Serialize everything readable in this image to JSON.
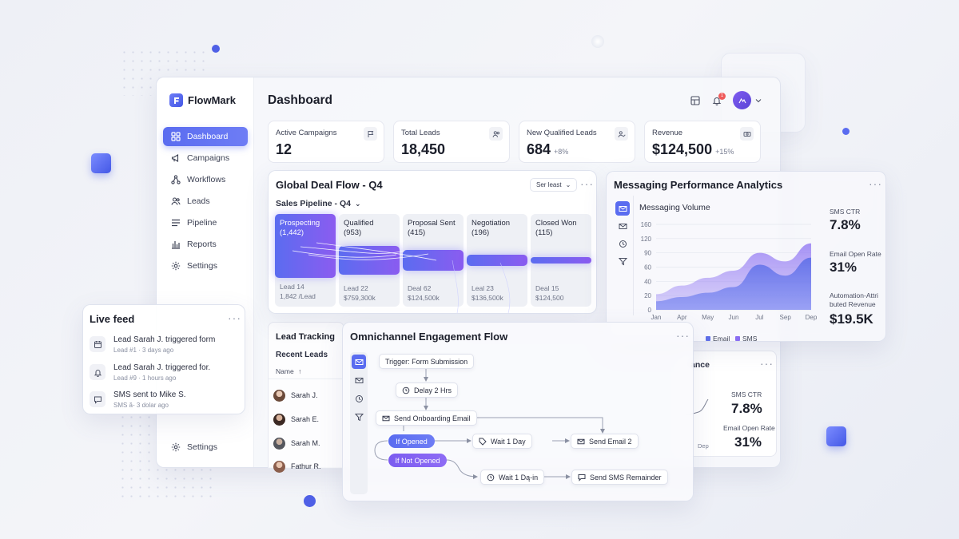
{
  "app": {
    "name": "FlowMark"
  },
  "sidebar": {
    "items": [
      {
        "label": "Dashboard",
        "icon": "grid-icon"
      },
      {
        "label": "Campaigns",
        "icon": "megaphone-icon"
      },
      {
        "label": "Workflows",
        "icon": "workflow-icon"
      },
      {
        "label": "Leads",
        "icon": "users-icon"
      },
      {
        "label": "Pipeline",
        "icon": "list-icon"
      },
      {
        "label": "Reports",
        "icon": "bar-chart-icon"
      },
      {
        "label": "Settings",
        "icon": "gear-icon"
      }
    ],
    "bottom_settings": "Settings"
  },
  "header": {
    "title": "Dashboard",
    "notification_count": "1"
  },
  "kpis": [
    {
      "label": "Active Campaigns",
      "value": "12",
      "delta": "",
      "icon": "flag-icon"
    },
    {
      "label": "Total Leads",
      "value": "18,450",
      "delta": "",
      "icon": "users-icon"
    },
    {
      "label": "New Qualified Leads",
      "value": "684",
      "delta": "+8%",
      "icon": "user-check-icon"
    },
    {
      "label": "Revenue",
      "value": "$124,500",
      "delta": "+15%",
      "icon": "cash-icon"
    }
  ],
  "deal_flow": {
    "title": "Global Deal Flow - Q4",
    "filter": "Ser least",
    "subtitle": "Sales Pipeline - Q4",
    "stages": [
      {
        "name": "Prospecting",
        "count": "(1,442)",
        "foot1": "Lead 14",
        "foot2": "1,842 /Lead",
        "fill": 0.7
      },
      {
        "name": "Qualified",
        "count": "(953)",
        "foot1": "Lead 22",
        "foot2": "$759,300k",
        "fill": 0.31
      },
      {
        "name": "Proposal Sent",
        "count": "(415)",
        "foot1": "Deal 62",
        "foot2": "$124,500k",
        "fill": 0.22
      },
      {
        "name": "Negotiation",
        "count": "(196)",
        "foot1": "Leal 23",
        "foot2": "$136,500k",
        "fill": 0.12
      },
      {
        "name": "Closed Won",
        "count": "(115)",
        "foot1": "Deal 15",
        "foot2": "$124,500",
        "fill": 0.07
      }
    ]
  },
  "messaging": {
    "title": "Messaging Performance Analytics",
    "chart_title": "Messaging Volume",
    "stats": [
      {
        "label": "SMS CTR",
        "value": "7.8%"
      },
      {
        "label": "Email Open Rate",
        "value": "31%"
      },
      {
        "label": "Automation-Attributed Revenue",
        "label_line1": "Automation-Attri",
        "label_line2": "buted Revenue",
        "value": "$19.5K"
      }
    ]
  },
  "chart_data": {
    "type": "area",
    "title": "Messaging Volume",
    "categories": [
      "Jan",
      "Apr",
      "May",
      "Jun",
      "Jul",
      "Sep",
      "Dep"
    ],
    "yticks": [
      0,
      20,
      40,
      60,
      90,
      120,
      160
    ],
    "ylim": [
      0,
      160
    ],
    "series": [
      {
        "name": "Email",
        "values": [
          12,
          18,
          24,
          32,
          65,
          48,
          80
        ]
      },
      {
        "name": "SMS",
        "values": [
          22,
          34,
          45,
          55,
          90,
          72,
          110
        ]
      }
    ],
    "legend": "bottom"
  },
  "live_feed": {
    "title": "Live feed",
    "items": [
      {
        "text": "Lead Sarah J. triggered form",
        "sub": "Lead #1 · 3 days ago",
        "icon": "calendar-icon"
      },
      {
        "text": "Lead Sarah J. triggered for.",
        "sub": "Lead #9 · 1 hours ago",
        "icon": "bell-icon"
      },
      {
        "text": "SMS sent to Mike S.",
        "sub": "SMS ă- 3 dolar ago",
        "icon": "chat-icon"
      }
    ]
  },
  "leads": {
    "title": "Lead Tracking",
    "subtitle": "Recent Leads",
    "column": "Name",
    "rows": [
      "Sarah J.",
      "Sarah E.",
      "Sarah M.",
      "Fathur R."
    ]
  },
  "flow": {
    "title": "Omnichannel Engagement Flow",
    "trigger": "Trigger: Form Submission",
    "delay": "Delay 2 Hrs",
    "send_email": "Send Onboarding Email",
    "if_opened": "If Opened",
    "if_not_opened": "If Not Opened",
    "wait1": "Wait 1 Day",
    "send_email2": "Send Email 2",
    "wait2": "Wait 1 Dą-in",
    "send_sms": "Send SMS Remainder"
  },
  "mini_card": {
    "title_fragment": "ance",
    "axis_label": "Dep",
    "stats": [
      {
        "label": "SMS CTR",
        "value": "7.8%"
      },
      {
        "label": "Email Open Rate",
        "value": "31%"
      }
    ]
  },
  "colors": {
    "accent": "#5a6cf0",
    "violet": "#8b5cf0",
    "email": "#5f6fe8",
    "sms": "#8a6ef2"
  }
}
